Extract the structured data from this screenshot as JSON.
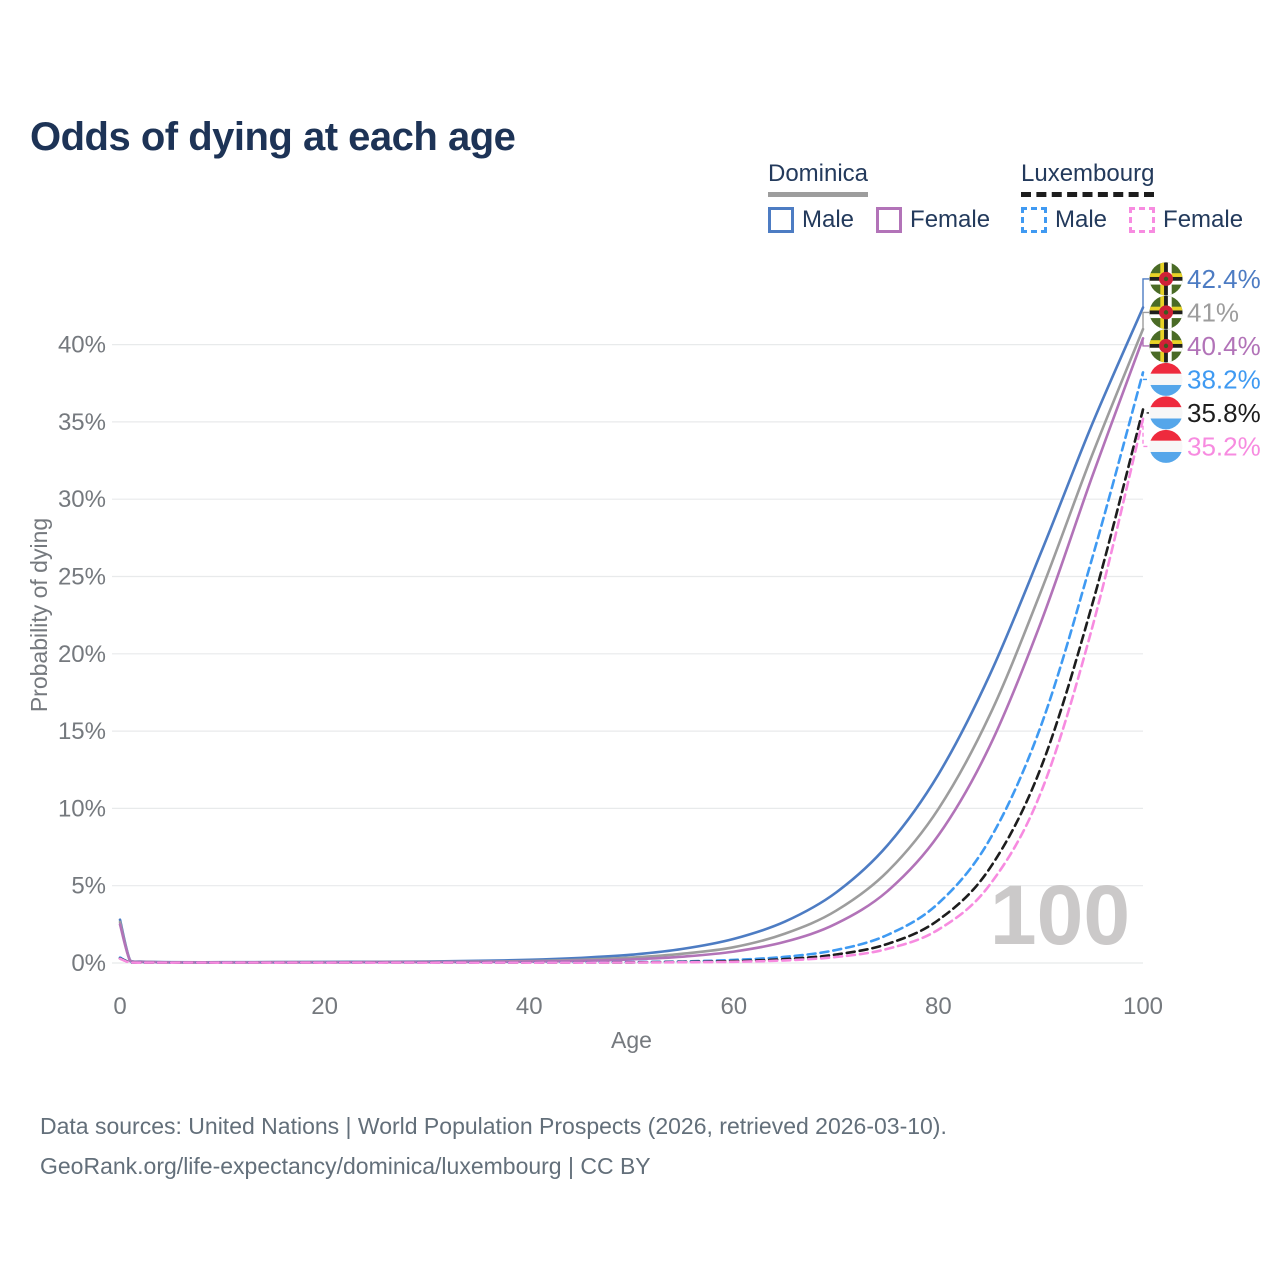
{
  "title": "Odds of dying at each age",
  "legend": {
    "groups": [
      {
        "name": "Dominica",
        "style": "solid",
        "items": [
          {
            "label": "Male",
            "series_index": 0
          },
          {
            "label": "Female",
            "series_index": 2
          }
        ],
        "underline_series": 1
      },
      {
        "name": "Luxembourg",
        "style": "dashed",
        "items": [
          {
            "label": "Male",
            "series_index": 3
          },
          {
            "label": "Female",
            "series_index": 5
          }
        ],
        "underline_series": 4
      }
    ]
  },
  "footer": {
    "line1": "Data sources: United Nations | World Population Prospects (2026, retrieved 2026-03-10).",
    "line2": "GeoRank.org/life-expectancy/dominica/luxembourg | CC BY"
  },
  "chart_data": {
    "type": "line",
    "title": "Odds of dying at each age",
    "xlabel": "Age",
    "ylabel": "Probability of dying",
    "xlim": [
      0,
      100
    ],
    "ylim": [
      0,
      44
    ],
    "x_ticks": [
      0,
      20,
      40,
      60,
      80,
      100
    ],
    "y_ticks": [
      0,
      5,
      10,
      15,
      20,
      25,
      30,
      35,
      40
    ],
    "y_tick_suffix": "%",
    "grid": true,
    "legend_position": "top-right",
    "age_marker": "100",
    "x": [
      0,
      1,
      2,
      5,
      10,
      15,
      20,
      25,
      30,
      35,
      40,
      45,
      50,
      55,
      60,
      65,
      70,
      75,
      80,
      85,
      90,
      95,
      100
    ],
    "series": [
      {
        "name": "Dominica Male",
        "country": "Dominica",
        "sex": "male",
        "flag": "dominica",
        "color": "#4d7cc3",
        "dash": "solid",
        "end_label": "42.4%",
        "values": [
          2.8,
          0.15,
          0.09,
          0.05,
          0.05,
          0.06,
          0.07,
          0.08,
          0.1,
          0.14,
          0.21,
          0.33,
          0.54,
          0.91,
          1.56,
          2.68,
          4.56,
          7.6,
          12.2,
          18.6,
          26.5,
          34.8,
          42.4
        ]
      },
      {
        "name": "Dominica Both sexes",
        "country": "Dominica",
        "sex": "both",
        "flag": "dominica",
        "color": "#9d9d9d",
        "dash": "solid",
        "end_label": "41%",
        "values": [
          2.65,
          0.13,
          0.08,
          0.04,
          0.04,
          0.05,
          0.05,
          0.06,
          0.07,
          0.09,
          0.13,
          0.21,
          0.35,
          0.6,
          1.02,
          1.9,
          3.38,
          5.9,
          9.97,
          16.0,
          24.0,
          32.8,
          41.0
        ]
      },
      {
        "name": "Dominica Female",
        "country": "Dominica",
        "sex": "female",
        "flag": "dominica",
        "color": "#b273b8",
        "dash": "solid",
        "end_label": "40.4%",
        "values": [
          2.5,
          0.12,
          0.07,
          0.04,
          0.04,
          0.04,
          0.04,
          0.05,
          0.05,
          0.07,
          0.09,
          0.14,
          0.23,
          0.41,
          0.74,
          1.37,
          2.54,
          4.64,
          8.26,
          14.0,
          22.0,
          31.4,
          40.4
        ]
      },
      {
        "name": "Luxembourg Male",
        "country": "Luxembourg",
        "sex": "male",
        "flag": "luxembourg",
        "color": "#3f9af2",
        "dash": "dashed",
        "end_label": "38.2%",
        "values": [
          0.35,
          0.03,
          0.02,
          0.02,
          0.02,
          0.02,
          0.03,
          0.03,
          0.03,
          0.03,
          0.04,
          0.04,
          0.06,
          0.1,
          0.2,
          0.4,
          0.84,
          1.81,
          3.86,
          7.96,
          15.3,
          26.1,
          38.2
        ]
      },
      {
        "name": "Luxembourg Both sexes",
        "country": "Luxembourg",
        "sex": "both",
        "flag": "luxembourg",
        "color": "#1d1d1d",
        "dash": "dashed",
        "end_label": "35.8%",
        "values": [
          0.3,
          0.03,
          0.02,
          0.02,
          0.02,
          0.02,
          0.02,
          0.03,
          0.03,
          0.03,
          0.03,
          0.03,
          0.04,
          0.07,
          0.12,
          0.25,
          0.55,
          1.23,
          2.78,
          6.1,
          12.6,
          23.1,
          35.8
        ]
      },
      {
        "name": "Luxembourg Female",
        "country": "Luxembourg",
        "sex": "female",
        "flag": "luxembourg",
        "color": "#f78be0",
        "dash": "dashed",
        "end_label": "35.2%",
        "values": [
          0.28,
          0.02,
          0.02,
          0.02,
          0.02,
          0.02,
          0.02,
          0.02,
          0.02,
          0.02,
          0.02,
          0.02,
          0.03,
          0.05,
          0.08,
          0.17,
          0.39,
          0.91,
          2.16,
          5.04,
          11.0,
          21.6,
          35.2
        ]
      }
    ]
  }
}
